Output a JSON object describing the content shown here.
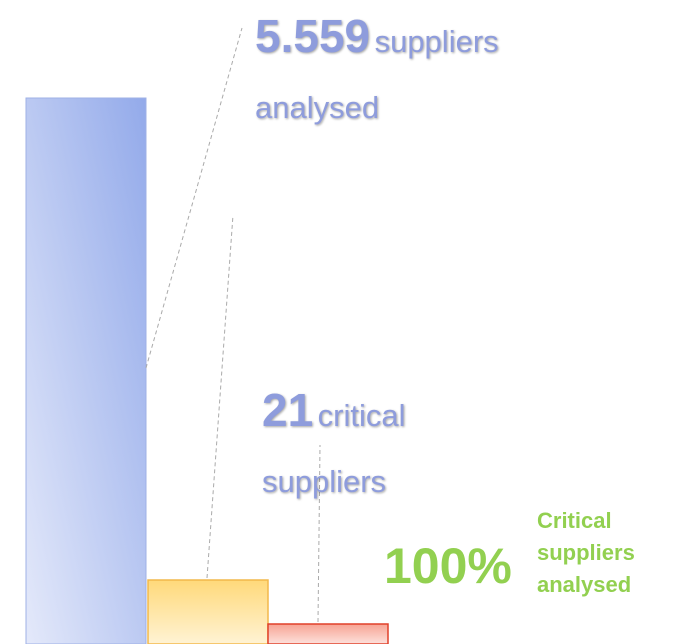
{
  "callouts": [
    {
      "number": "5.559",
      "text": "suppliers analysed"
    },
    {
      "number": "21",
      "text": "critical suppliers"
    },
    {
      "number": "100%",
      "text": "Critical suppliers analysed"
    }
  ]
}
